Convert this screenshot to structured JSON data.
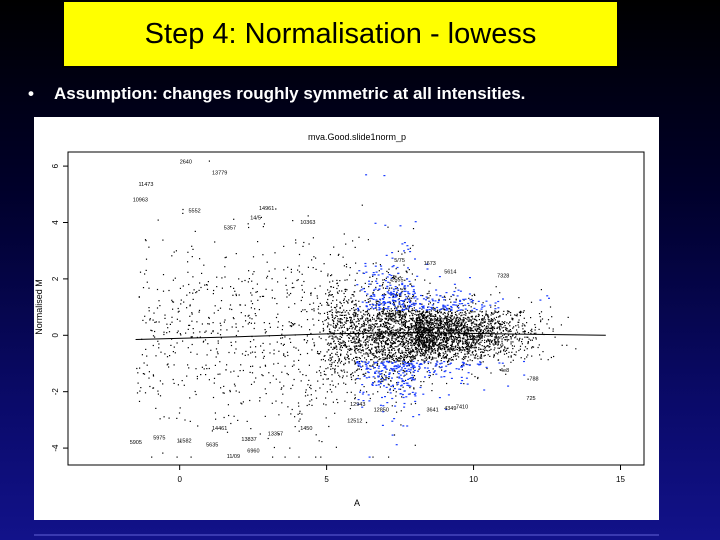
{
  "slide": {
    "title": "Step 4: Normalisation - lowess",
    "bullet": "Assumption: changes roughly symmetric at all intensities."
  },
  "colors": {
    "title_bg": "#ffff00",
    "highlight_points": "#1a3cff",
    "points": "#000000"
  },
  "chart_data": {
    "type": "scatter",
    "title": "mva.Good.slide1norm_p",
    "xlabel": "A",
    "ylabel": "Normalised M",
    "xlim": [
      -3.8,
      15.8
    ],
    "ylim": [
      -4.6,
      6.5
    ],
    "xticks": [
      0,
      5,
      10,
      15
    ],
    "yticks": [
      -4,
      -2,
      0,
      2,
      4,
      6
    ],
    "xtick_labels": [
      "0",
      "5",
      "10",
      "15"
    ],
    "ytick_labels": [
      "-4",
      "-2",
      "0",
      "2",
      "4",
      "6"
    ],
    "grid": false,
    "lowess_line": {
      "x": [
        -1.5,
        2,
        5,
        8,
        11,
        14.5
      ],
      "y": [
        -0.15,
        -0.05,
        0.05,
        0.1,
        0.05,
        0.0
      ]
    },
    "labeled_points": [
      {
        "label": "2640",
        "x": 0.0,
        "y": 6.1
      },
      {
        "label": "13779",
        "x": 1.1,
        "y": 5.7
      },
      {
        "label": "11473",
        "x": -1.4,
        "y": 5.3
      },
      {
        "label": "10963",
        "x": -1.6,
        "y": 4.75
      },
      {
        "label": "5552",
        "x": 0.3,
        "y": 4.35
      },
      {
        "label": "14961",
        "x": 2.7,
        "y": 4.45
      },
      {
        "label": "14/5",
        "x": 2.4,
        "y": 4.1
      },
      {
        "label": "10363",
        "x": 4.1,
        "y": 3.95
      },
      {
        "label": "5357",
        "x": 1.5,
        "y": 3.75
      },
      {
        "label": "5/75",
        "x": 7.3,
        "y": 2.6
      },
      {
        "label": "1673",
        "x": 8.3,
        "y": 2.5
      },
      {
        "label": "5614",
        "x": 9.0,
        "y": 2.2
      },
      {
        "label": "7328",
        "x": 10.8,
        "y": 2.05
      },
      {
        "label": "2555",
        "x": 7.2,
        "y": 1.9
      },
      {
        "label": "4e8",
        "x": 10.9,
        "y": -1.3
      },
      {
        "label": "788",
        "x": 11.9,
        "y": -1.6
      },
      {
        "label": "725",
        "x": 11.8,
        "y": -2.3
      },
      {
        "label": "3641",
        "x": 8.4,
        "y": -2.7
      },
      {
        "label": "4349",
        "x": 9.0,
        "y": -2.65
      },
      {
        "label": "7410",
        "x": 9.4,
        "y": -2.6
      },
      {
        "label": "12850",
        "x": 6.6,
        "y": -2.7
      },
      {
        "label": "12943",
        "x": 5.8,
        "y": -2.5
      },
      {
        "label": "12512",
        "x": 5.7,
        "y": -3.1
      },
      {
        "label": "1450",
        "x": 4.1,
        "y": -3.35
      },
      {
        "label": "13357",
        "x": 3.0,
        "y": -3.55
      },
      {
        "label": "13837",
        "x": 2.1,
        "y": -3.75
      },
      {
        "label": "14461",
        "x": 1.1,
        "y": -3.35
      },
      {
        "label": "5905",
        "x": -1.7,
        "y": -3.85
      },
      {
        "label": "5975",
        "x": -0.9,
        "y": -3.7
      },
      {
        "label": "11582",
        "x": -0.1,
        "y": -3.8
      },
      {
        "label": "5635",
        "x": 0.9,
        "y": -3.95
      },
      {
        "label": "6960",
        "x": 2.3,
        "y": -4.15
      },
      {
        "label": "11/09",
        "x": 1.6,
        "y": -4.35
      }
    ],
    "point_cloud": {
      "n_points": 5200,
      "note_x_range": [
        -1.5,
        15
      ],
      "dense_center": [
        9.5,
        0.2
      ]
    }
  }
}
